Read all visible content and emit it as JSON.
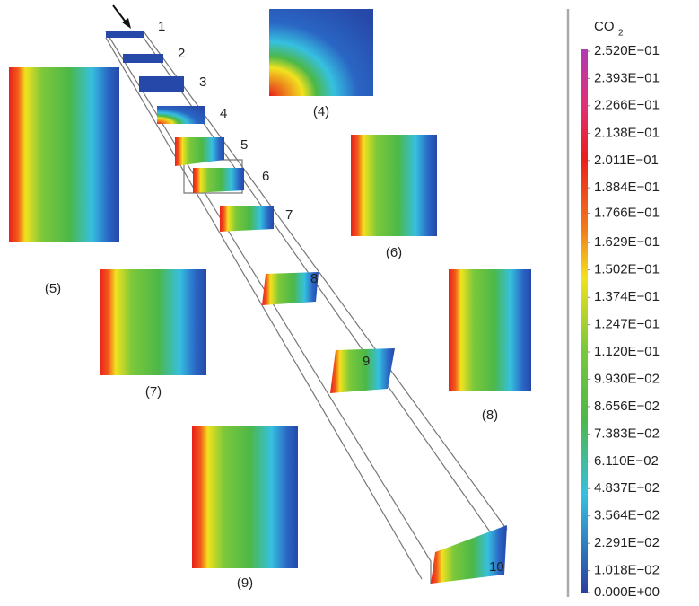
{
  "figure": {
    "sections": [
      "1",
      "2",
      "3",
      "4",
      "5",
      "6",
      "7",
      "8",
      "9",
      "10"
    ],
    "panels": [
      "(4)",
      "(5)",
      "(6)",
      "(7)",
      "(8)",
      "(9)"
    ],
    "colorbar": {
      "title": {
        "text": "CO",
        "subscript": "2"
      },
      "range": [
        0,
        0.252
      ],
      "ticks": [
        {
          "value": 0.252,
          "label": "2.520E−01"
        },
        {
          "value": 0.2393,
          "label": "2.393E−01"
        },
        {
          "value": 0.2266,
          "label": "2.266E−01"
        },
        {
          "value": 0.2138,
          "label": "2.138E−01"
        },
        {
          "value": 0.2011,
          "label": "2.011E−01"
        },
        {
          "value": 0.1884,
          "label": "1.884E−01"
        },
        {
          "value": 0.1766,
          "label": "1.766E−01"
        },
        {
          "value": 0.1629,
          "label": "1.629E−01"
        },
        {
          "value": 0.1502,
          "label": "1.502E−01"
        },
        {
          "value": 0.1374,
          "label": "1.374E−01"
        },
        {
          "value": 0.1247,
          "label": "1.247E−01"
        },
        {
          "value": 0.112,
          "label": "1.120E−01"
        },
        {
          "value": 0.0993,
          "label": "9.930E−02"
        },
        {
          "value": 0.08656,
          "label": "8.656E−02"
        },
        {
          "value": 0.07383,
          "label": "7.383E−02"
        },
        {
          "value": 0.0611,
          "label": "6.110E−02"
        },
        {
          "value": 0.04837,
          "label": "4.837E−02"
        },
        {
          "value": 0.03564,
          "label": "3.564E−02"
        },
        {
          "value": 0.02291,
          "label": "2.291E−02"
        },
        {
          "value": 0.01018,
          "label": "1.018E−02"
        },
        {
          "value": 0,
          "label": "0.000E+00"
        }
      ]
    }
  }
}
